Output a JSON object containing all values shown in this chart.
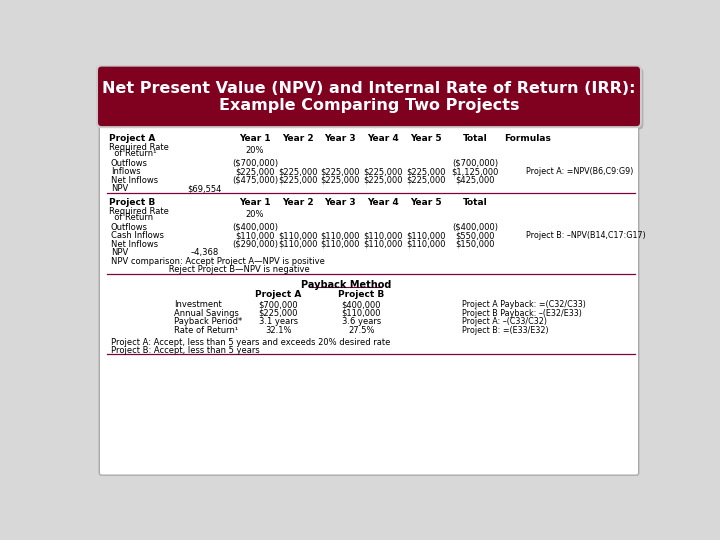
{
  "title_line1": "Net Present Value (NPV) and Internal Rate of Return (IRR):",
  "title_line2": "Example Comparing Two Projects",
  "title_bg_color": "#800020",
  "title_text_color": "#FFFFFF",
  "bg_color": "#D8D8D8",
  "panel_bg": "#FFFFFF",
  "border_color": "#999999",
  "divider_color": "#800040",
  "proj_a_header": [
    "Project A",
    "",
    "Year 1",
    "Year 2",
    "Year 3",
    "Year 4",
    "Year 5",
    "Total",
    "Formulas"
  ],
  "proj_a_row1_label": "Required Rate",
  "proj_a_row1_label2": "  of Return¹",
  "proj_a_row1_val": "20%",
  "proj_a_rows": [
    [
      "Outflows",
      "($700,000)",
      "",
      "",
      "",
      "",
      "($700,000)",
      ""
    ],
    [
      "Inflows",
      "$225,000",
      "$225,000",
      "$225,000",
      "$225,000",
      "$225,000",
      "$1,125,000",
      "Project A: =NPV(B6,C9:G9)"
    ],
    [
      "Net Inflows",
      "($475,000)",
      "$225,000",
      "$225,000",
      "$225,000",
      "$225,000",
      "$425,000",
      ""
    ],
    [
      "NPV",
      "",
      "",
      "",
      "",
      "",
      "",
      ""
    ]
  ],
  "proj_a_npv": "$69,554",
  "proj_b_header": [
    "Project B",
    "",
    "Year 1",
    "Year 2",
    "Year 3",
    "Year 4",
    "Year 5",
    "Total"
  ],
  "proj_b_row1_label": "Required Rate",
  "proj_b_row1_label2": "  of Return",
  "proj_b_row1_val": "20%",
  "proj_b_rows": [
    [
      "Outflows",
      "($400,000)",
      "",
      "",
      "",
      "",
      "($400,000)",
      ""
    ],
    [
      "Cash Inflows",
      "$110,000",
      "$110,000",
      "$110,000",
      "$110,000",
      "$110,000",
      "$550,000",
      "Project B: –NPV(B14,C17:G17)"
    ],
    [
      "Net Inflows",
      "($290,000)",
      "$110,000",
      "$110,000",
      "$110,000",
      "$110,000",
      "$150,000",
      ""
    ]
  ],
  "proj_b_npv": "–4,368",
  "npv_compare1": "NPV comparison: Accept Project A—NPV is positive",
  "npv_compare2": "                      Reject Project B—NPV is negative",
  "payback_title": "Payback Method",
  "payback_rows": [
    [
      "Investment",
      "$700,000",
      "$400,000"
    ],
    [
      "Annual Savings",
      "$225,000",
      "$110,000"
    ],
    [
      "Payback Period*",
      "3.1 years",
      "3.6 years"
    ],
    [
      "Rate of Return¹",
      "32.1%",
      "27.5%"
    ]
  ],
  "payback_formulas_line1": "Project A Payback: =(C32/C33)",
  "payback_formulas_line2": "Project B Payback: –(E32/E33)",
  "payback_formulas_line3": "Project A: –(C33/C32)",
  "payback_formulas_line4": "Project B: =(E33/E32)",
  "footnote1": "Project A: Accept, less than 5 years and exceeds 20% desired rate",
  "footnote2": "Project B: Accept, less than 5 years"
}
